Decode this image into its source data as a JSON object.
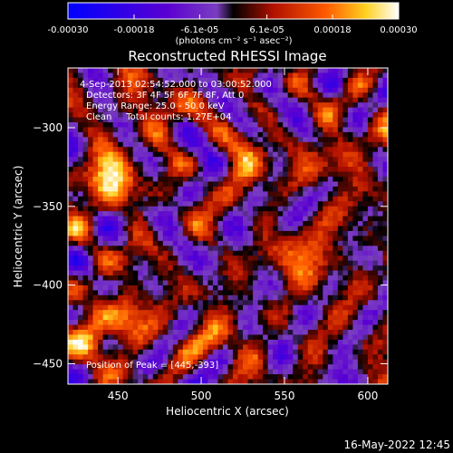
{
  "chart_data": {
    "type": "heatmap",
    "title": "Reconstructed RHESSI Image",
    "xlabel": "Heliocentric X (arcsec)",
    "ylabel": "Heliocentric Y (arcsec)",
    "xlim": [
      420,
      612
    ],
    "ylim": [
      -463,
      -262
    ],
    "xticks": [
      450,
      500,
      550,
      600
    ],
    "yticks": [
      -300,
      -350,
      -400,
      -450
    ],
    "colorbar": {
      "range": [
        -0.0003,
        0.0003
      ],
      "ticks": [
        -0.0003,
        -0.00018,
        -6.1e-05,
        6.1e-05,
        0.00018,
        0.0003
      ],
      "tick_labels": [
        "-0.00030",
        "-0.00018",
        "-6.1e-05",
        "6.1e-05",
        "0.00018",
        "0.00030"
      ],
      "unit_label": "(photons cm⁻² s⁻¹ asec⁻²)",
      "stops": [
        "#0000ff",
        "#5a00d2",
        "#7a3ec0",
        "#000000",
        "#b01000",
        "#ff5a00",
        "#ffd020",
        "#ffffff"
      ]
    },
    "annotations": [
      "4-Sep-2013 02:54:52.000 to 03:00:52.000",
      "Detectors: 3F 4F 5F 6F 7F 8F, Att 0",
      "Energy Range: 25.0 - 50.0 keV",
      "Clean     Total counts: 1.27E+04",
      "Position of Peak = [445,-393]"
    ],
    "peak": [
      445,
      -393
    ],
    "grid": false,
    "image_note": "noisy reconstructed map"
  },
  "timestamp": "16-May-2022 12:45"
}
